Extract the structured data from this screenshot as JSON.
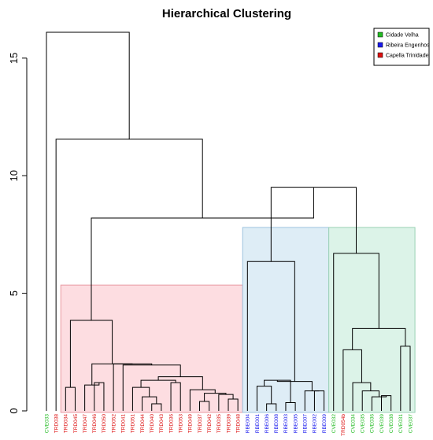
{
  "chart_data": {
    "type": "dendrogram",
    "title": "Hierarchical Clustering",
    "xlabel": "",
    "ylabel": "",
    "ylim": [
      0,
      16.3
    ],
    "y_ticks": [
      0,
      5,
      10,
      15
    ],
    "legend": {
      "position": "top-right",
      "entries": [
        {
          "label": "Cidade Velha",
          "color": "#22bb22"
        },
        {
          "label": "Ribeira Engenhos",
          "color": "#1a1aee"
        },
        {
          "label": "Capella Trinidade",
          "color": "#dd1111"
        }
      ]
    },
    "leaves": [
      {
        "id": "CVE033",
        "group": "Cidade Velha"
      },
      {
        "id": "TRD038",
        "group": "Capella Trinidade"
      },
      {
        "id": "TRD034",
        "group": "Capella Trinidade"
      },
      {
        "id": "TRD045",
        "group": "Capella Trinidade"
      },
      {
        "id": "TRD047",
        "group": "Capella Trinidade"
      },
      {
        "id": "TRD046",
        "group": "Capella Trinidade"
      },
      {
        "id": "TRD050",
        "group": "Capella Trinidade"
      },
      {
        "id": "TRD052",
        "group": "Capella Trinidade"
      },
      {
        "id": "TRD041",
        "group": "Capella Trinidade"
      },
      {
        "id": "TRD051",
        "group": "Capella Trinidade"
      },
      {
        "id": "TRD044",
        "group": "Capella Trinidade"
      },
      {
        "id": "TRD040",
        "group": "Capella Trinidade"
      },
      {
        "id": "TRD043",
        "group": "Capella Trinidade"
      },
      {
        "id": "TRD036",
        "group": "Capella Trinidade"
      },
      {
        "id": "TRD053",
        "group": "Capella Trinidade"
      },
      {
        "id": "TRD049",
        "group": "Capella Trinidade"
      },
      {
        "id": "TRD037",
        "group": "Capella Trinidade"
      },
      {
        "id": "TRD042",
        "group": "Capella Trinidade"
      },
      {
        "id": "TRD035",
        "group": "Capella Trinidade"
      },
      {
        "id": "TRD039",
        "group": "Capella Trinidade"
      },
      {
        "id": "TRD048",
        "group": "Capella Trinidade"
      },
      {
        "id": "RBE004",
        "group": "Ribeira Engenhos"
      },
      {
        "id": "RBE001",
        "group": "Ribeira Engenhos"
      },
      {
        "id": "RBE006",
        "group": "Ribeira Engenhos"
      },
      {
        "id": "RBE008",
        "group": "Ribeira Engenhos"
      },
      {
        "id": "RBE003",
        "group": "Ribeira Engenhos"
      },
      {
        "id": "RBE005",
        "group": "Ribeira Engenhos"
      },
      {
        "id": "RBE007",
        "group": "Ribeira Engenhos"
      },
      {
        "id": "RBE002",
        "group": "Ribeira Engenhos"
      },
      {
        "id": "RBE009",
        "group": "Ribeira Engenhos"
      },
      {
        "id": "CVE032",
        "group": "Cidade Velha"
      },
      {
        "id": "TRD054b",
        "group": "Capella Trinidade"
      },
      {
        "id": "CVE034",
        "group": "Cidade Velha"
      },
      {
        "id": "CVE035",
        "group": "Cidade Velha"
      },
      {
        "id": "CVE036",
        "group": "Cidade Velha"
      },
      {
        "id": "CVE039",
        "group": "Cidade Velha"
      },
      {
        "id": "CVE038",
        "group": "Cidade Velha"
      },
      {
        "id": "CVE031",
        "group": "Cidade Velha"
      },
      {
        "id": "CVE037",
        "group": "Cidade Velha"
      }
    ],
    "merges": [
      {
        "left": "L2",
        "right": "L3",
        "height": 1.0
      },
      {
        "left": "L5",
        "right": "L6",
        "height": 1.2
      },
      {
        "left": "L4",
        "right": "M1",
        "height": 1.1
      },
      {
        "left": "L11",
        "right": "L12",
        "height": 0.3
      },
      {
        "left": "L10",
        "right": "M3",
        "height": 0.6
      },
      {
        "left": "L9",
        "right": "M4",
        "height": 1.0
      },
      {
        "left": "L13",
        "right": "L14",
        "height": 1.2
      },
      {
        "left": "M5",
        "right": "M6",
        "height": 1.3
      },
      {
        "left": "L16",
        "right": "L17",
        "height": 0.4
      },
      {
        "left": "L19",
        "right": "L20",
        "height": 0.5
      },
      {
        "left": "L18",
        "right": "M9",
        "height": 0.7
      },
      {
        "left": "M8",
        "right": "M10",
        "height": 0.75
      },
      {
        "left": "L15",
        "right": "M11",
        "height": 0.9
      },
      {
        "left": "M7",
        "right": "M12",
        "height": 1.45
      },
      {
        "left": "L8",
        "right": "M13",
        "height": 1.95
      },
      {
        "left": "L7",
        "right": "M14",
        "height": 2.0
      },
      {
        "left": "M2",
        "right": "M15",
        "height": 2.0
      },
      {
        "left": "M0",
        "right": "M16",
        "height": 3.85
      },
      {
        "left": "L23",
        "right": "L24",
        "height": 0.3
      },
      {
        "left": "L22",
        "right": "M18",
        "height": 1.05
      },
      {
        "left": "L25",
        "right": "L26",
        "height": 0.35
      },
      {
        "left": "M19",
        "right": "M20",
        "height": 1.3
      },
      {
        "left": "L28",
        "right": "L29",
        "height": 0.85
      },
      {
        "left": "L27",
        "right": "M22",
        "height": 0.85
      },
      {
        "left": "M21",
        "right": "M23",
        "height": 1.25
      },
      {
        "left": "L21",
        "right": "M24",
        "height": 6.35
      },
      {
        "left": "L35",
        "right": "L36",
        "height": 0.65
      },
      {
        "left": "L34",
        "right": "M26",
        "height": 0.6
      },
      {
        "left": "L33",
        "right": "M27",
        "height": 0.85
      },
      {
        "left": "L32",
        "right": "M28",
        "height": 1.2
      },
      {
        "left": "L31",
        "right": "M29",
        "height": 2.6
      },
      {
        "left": "L37",
        "right": "L38",
        "height": 2.75
      },
      {
        "left": "M30",
        "right": "M31",
        "height": 3.5
      },
      {
        "left": "L30",
        "right": "M32",
        "height": 6.7
      },
      {
        "left": "M25",
        "right": "M33",
        "height": 9.5
      },
      {
        "left": "M17",
        "right": "M34",
        "height": 8.2
      },
      {
        "left": "L1",
        "right": "M35",
        "height": 11.55
      },
      {
        "left": "L0",
        "right": "M36",
        "height": 16.1
      }
    ],
    "cluster_boxes": [
      {
        "first_leaf": 2,
        "last_leaf": 20,
        "top": 5.35,
        "fill": "#fddde1",
        "stroke": "#e89aa2"
      },
      {
        "first_leaf": 21,
        "last_leaf": 29,
        "top": 7.8,
        "fill": "#deedf6",
        "stroke": "#9cc3df"
      },
      {
        "first_leaf": 30,
        "last_leaf": 38,
        "top": 7.8,
        "fill": "#dcf3e8",
        "stroke": "#9ad2b4"
      }
    ]
  }
}
